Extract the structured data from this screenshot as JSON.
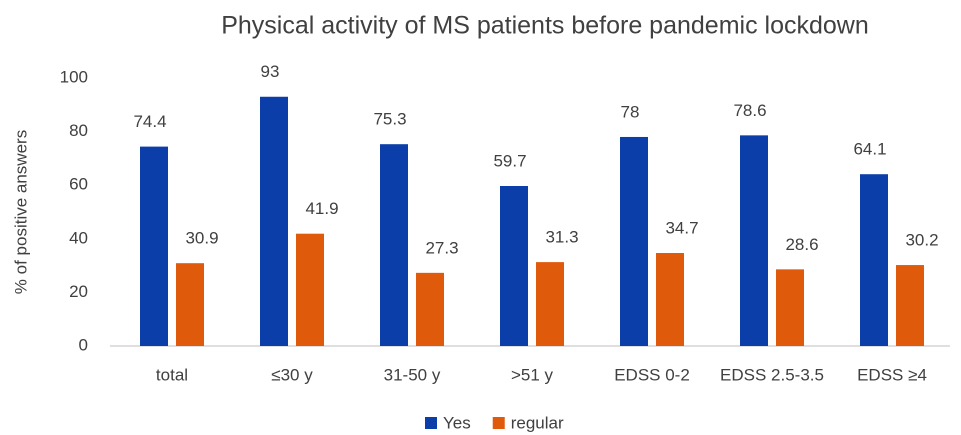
{
  "chart_data": {
    "type": "bar",
    "title": "Physical activity of MS patients  before pandemic lockdown",
    "y_label": "% of positive answers",
    "categories": [
      "total",
      "≤30 y",
      "31-50 y",
      ">51 y",
      "EDSS 0-2",
      "EDSS 2.5-3.5",
      "EDSS ≥4"
    ],
    "series": [
      {
        "name": "Yes",
        "color": "#0b3ea8",
        "values": [
          74.4,
          93,
          75.3,
          59.7,
          78,
          78.6,
          64.1
        ]
      },
      {
        "name": "regular",
        "color": "#e05a0b",
        "values": [
          30.9,
          41.9,
          27.3,
          31.3,
          34.7,
          28.6,
          30.2
        ]
      }
    ],
    "ylim": [
      0,
      100
    ],
    "yticks": [
      0,
      20,
      40,
      60,
      80,
      100
    ],
    "grid": false,
    "legend": "bottom"
  }
}
